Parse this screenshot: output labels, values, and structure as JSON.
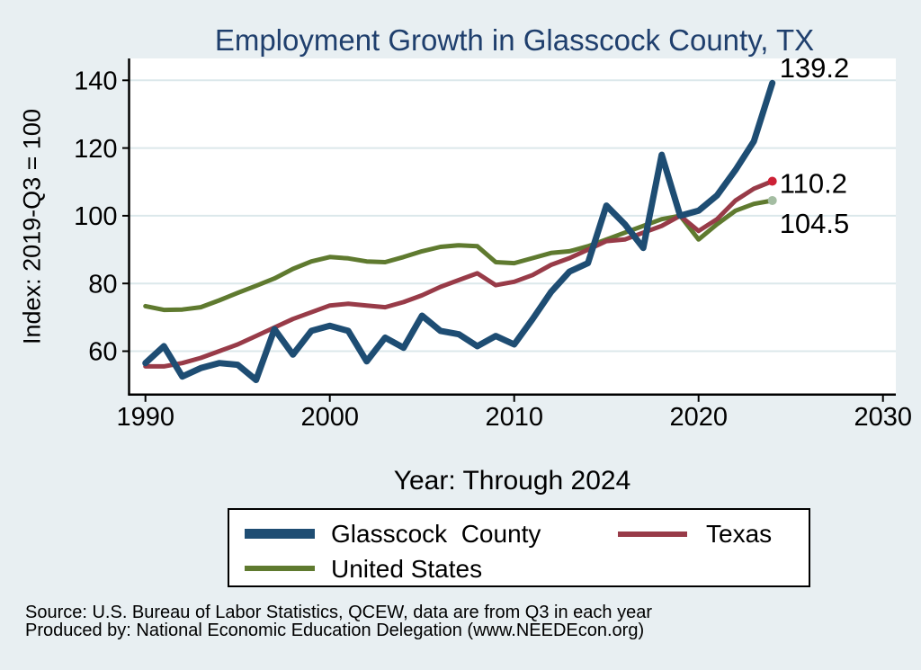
{
  "page": {
    "title": "Employment Growth in Glasscock County, TX",
    "footer_line1": "Source: U.S. Bureau of Labor Statistics, QCEW, data are from Q3 in each year",
    "footer_line2": "Produced by: National Economic Education Delegation (www.NEEDEcon.org)"
  },
  "colors": {
    "background": "#e8eff2",
    "plot_background": "#ffffff",
    "gridline": "#dce8eb",
    "axis": "#000000",
    "title_text": "#1f3f6d",
    "glasscock_line": "#1e4d73",
    "texas_line": "#983b48",
    "us_line": "#5f7a2f",
    "texas_end_dot": "#cc2136",
    "us_end_dot": "#a4bda2"
  },
  "chart_data": {
    "type": "line",
    "title": "Employment Growth in Glasscock County, TX",
    "xlabel": "Year: Through 2024",
    "ylabel": "Index: 2019-Q3 = 100",
    "x_ticks": [
      1990,
      2000,
      2010,
      2020,
      2030
    ],
    "y_ticks": [
      140,
      120,
      100,
      80,
      60
    ],
    "xlim": [
      1989.1,
      2030.7
    ],
    "ylim": [
      47.2,
      146.5
    ],
    "grid": "horizontal-only",
    "legend_position": "below",
    "x": [
      1990,
      1991,
      1992,
      1993,
      1994,
      1995,
      1996,
      1997,
      1998,
      1999,
      2000,
      2001,
      2002,
      2003,
      2004,
      2005,
      2006,
      2007,
      2008,
      2009,
      2010,
      2011,
      2012,
      2013,
      2014,
      2015,
      2016,
      2017,
      2018,
      2019,
      2020,
      2021,
      2022,
      2023,
      2024
    ],
    "series": [
      {
        "name": "Glasscock  County",
        "color": "#1e4d73",
        "line_width": 7,
        "end_label": "139.2",
        "end_dot": null,
        "values": [
          56.5,
          61.5,
          52.5,
          55,
          56.5,
          56,
          51.5,
          66.5,
          59,
          66,
          67.5,
          66,
          57,
          64,
          61,
          70.5,
          66,
          65,
          61.5,
          64.5,
          62,
          69.5,
          77.5,
          83.5,
          86,
          103,
          97.5,
          90.5,
          118,
          100,
          101.5,
          106,
          113.5,
          122,
          139.2
        ]
      },
      {
        "name": "Texas",
        "color": "#983b48",
        "line_width": 5,
        "end_label": "110.2",
        "end_dot": "#cc2136",
        "values": [
          55.5,
          55.5,
          56.5,
          58,
          60,
          62,
          64.5,
          67,
          69.5,
          71.5,
          73.5,
          74,
          73.5,
          73,
          74.5,
          76.5,
          79,
          81,
          83,
          79.5,
          80.5,
          82.5,
          85.5,
          87.5,
          90,
          92.5,
          93,
          95,
          97,
          100,
          95.5,
          99,
          104.5,
          108,
          110.2
        ]
      },
      {
        "name": "United States",
        "color": "#5f7a2f",
        "line_width": 5,
        "end_label": "104.5",
        "end_dot": "#a4bda2",
        "values": [
          73.3,
          72.2,
          72.3,
          73,
          75,
          77.2,
          79.3,
          81.5,
          84.3,
          86.5,
          87.8,
          87.4,
          86.5,
          86.3,
          87.8,
          89.5,
          90.8,
          91.3,
          91,
          86.3,
          86,
          87.5,
          89,
          89.5,
          91,
          93,
          95,
          97,
          99,
          100,
          93,
          97.5,
          101.5,
          103.5,
          104.5
        ]
      }
    ]
  }
}
